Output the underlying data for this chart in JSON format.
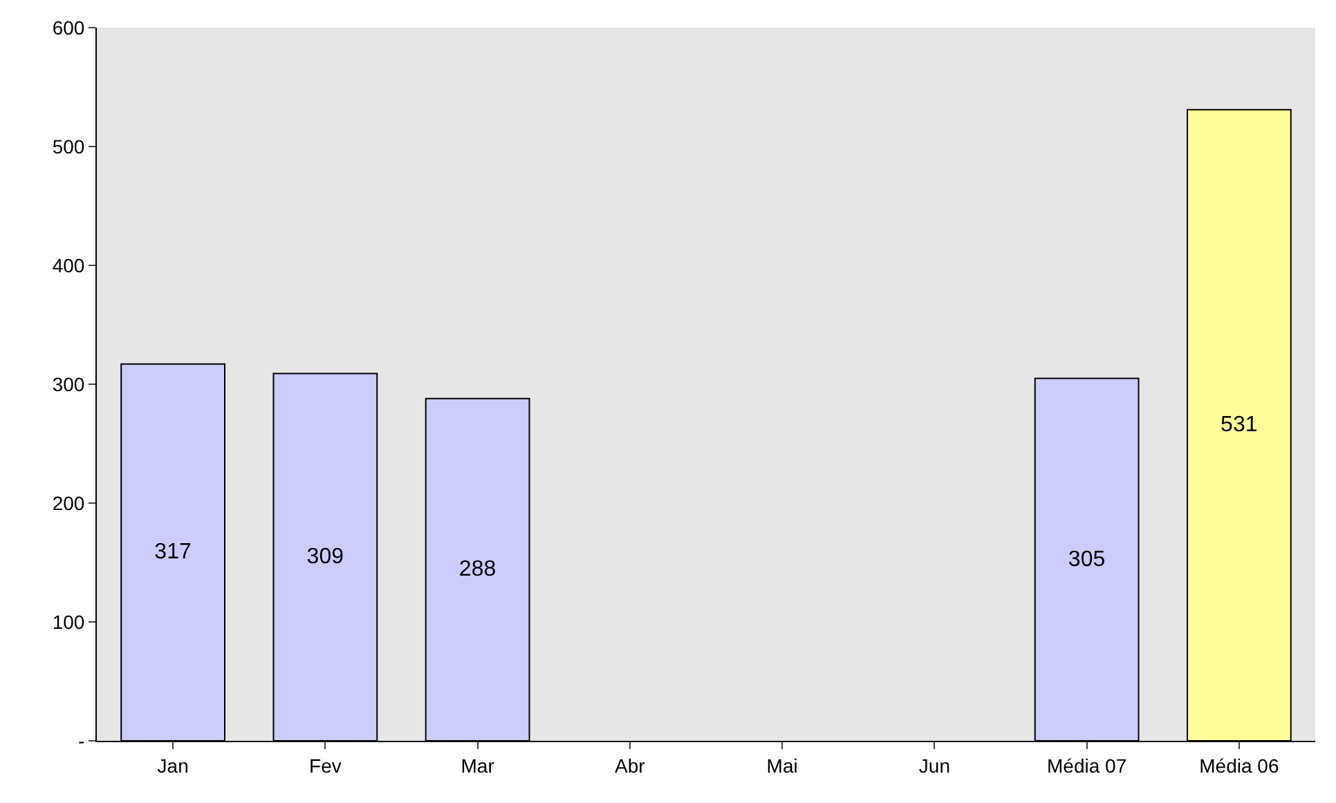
{
  "chart_data": {
    "type": "bar",
    "categories": [
      "Jan",
      "Fev",
      "Mar",
      "Abr",
      "Mai",
      "Jun",
      "Média 07",
      "Média 06"
    ],
    "values": [
      317,
      309,
      288,
      null,
      null,
      null,
      305,
      531
    ],
    "colors": [
      "#ccccff",
      "#ccccff",
      "#ccccff",
      "#ccccff",
      "#ccccff",
      "#ccccff",
      "#ccccff",
      "#ffff99"
    ],
    "ylim": [
      0,
      600
    ],
    "yticks": [
      {
        "value": 0,
        "label": "-"
      },
      100,
      200,
      300,
      400,
      500,
      600
    ],
    "data_labels": true
  }
}
